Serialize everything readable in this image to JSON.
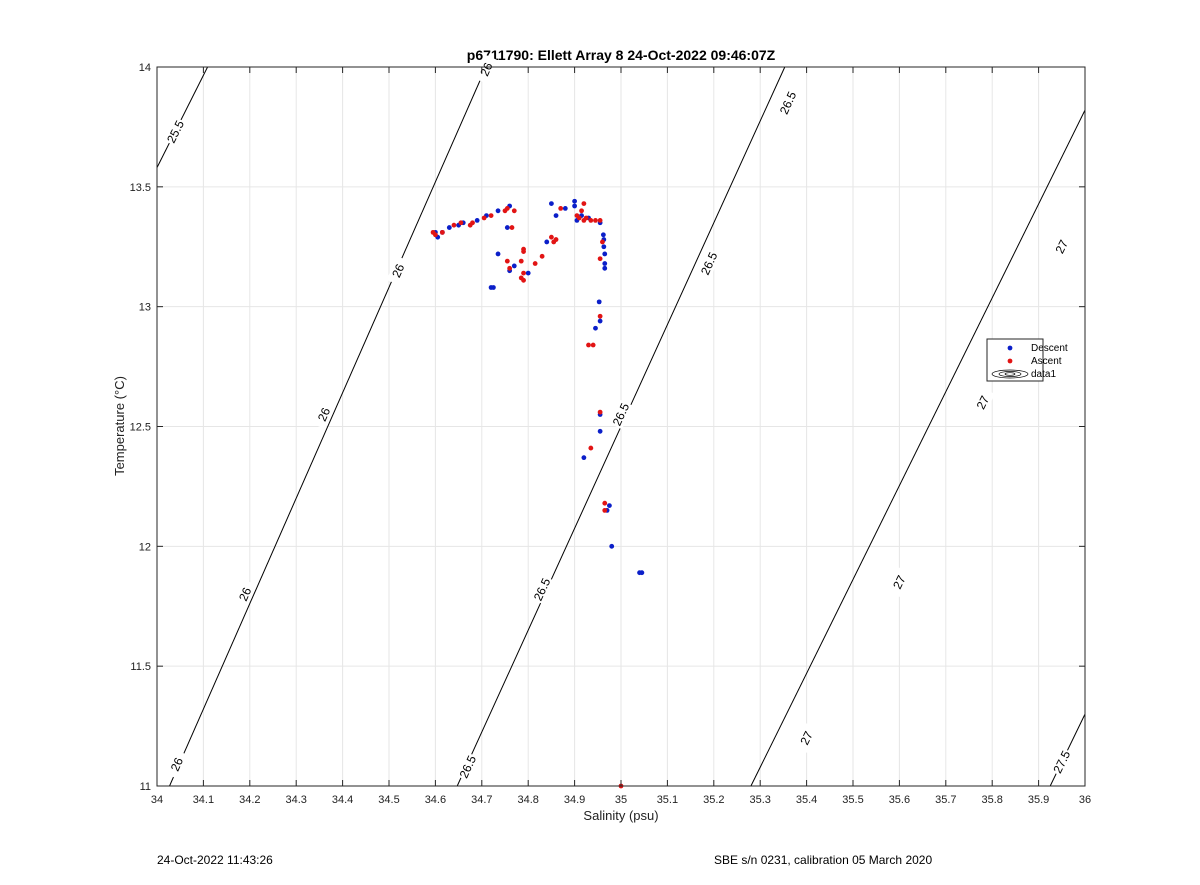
{
  "chart_data": {
    "type": "scatter",
    "title": "p6711790: Ellett Array 8 24-Oct-2022 09:46:07Z",
    "xlabel": "Salinity (psu)",
    "ylabel": "Temperature (°C)",
    "xlim": [
      34,
      36
    ],
    "ylim": [
      11,
      14
    ],
    "xticks": [
      "34",
      "34.1",
      "34.2",
      "34.3",
      "34.4",
      "34.5",
      "34.6",
      "34.7",
      "34.8",
      "34.9",
      "35",
      "35.1",
      "35.2",
      "35.3",
      "35.4",
      "35.5",
      "35.6",
      "35.7",
      "35.8",
      "35.9",
      "36"
    ],
    "yticks": [
      "11",
      "11.5",
      "12",
      "12.5",
      "13",
      "13.5",
      "14"
    ],
    "grid": true,
    "legend_position": "right",
    "contours": [
      {
        "level": "25.5",
        "points": [
          [
            34.0,
            13.58
          ],
          [
            34.109,
            14.0
          ]
        ],
        "labels": [
          [
            34.04,
            13.73
          ]
        ]
      },
      {
        "level": "26",
        "points": [
          [
            34.027,
            11.0
          ],
          [
            34.709,
            14.0
          ]
        ],
        "labels": [
          [
            34.043,
            11.09
          ],
          [
            34.19,
            11.8
          ],
          [
            34.36,
            12.55
          ],
          [
            34.52,
            13.15
          ],
          [
            34.71,
            13.99
          ]
        ]
      },
      {
        "level": "26.5",
        "points": [
          [
            34.647,
            11.0
          ],
          [
            35.353,
            14.0
          ]
        ],
        "labels": [
          [
            34.67,
            11.08
          ],
          [
            34.83,
            11.82
          ],
          [
            35.0,
            12.55
          ],
          [
            35.19,
            13.18
          ],
          [
            35.36,
            13.85
          ]
        ]
      },
      {
        "level": "27",
        "points": [
          [
            35.28,
            11.0
          ],
          [
            36.0,
            13.82
          ]
        ],
        "labels": [
          [
            35.4,
            11.2
          ],
          [
            35.6,
            11.85
          ],
          [
            35.78,
            12.6
          ],
          [
            35.95,
            13.25
          ]
        ]
      },
      {
        "level": "27.5",
        "points": [
          [
            35.925,
            11.0
          ],
          [
            36.0,
            11.3
          ]
        ],
        "labels": [
          [
            35.95,
            11.1
          ]
        ]
      }
    ],
    "series": [
      {
        "name": "Descent",
        "color": "#0b1fc9",
        "points": [
          [
            35.045,
            11.89
          ],
          [
            35.04,
            11.89
          ],
          [
            34.98,
            12.0
          ],
          [
            34.975,
            12.17
          ],
          [
            34.97,
            12.15
          ],
          [
            34.955,
            12.48
          ],
          [
            34.92,
            12.37
          ],
          [
            34.955,
            12.55
          ],
          [
            34.945,
            12.91
          ],
          [
            34.955,
            12.94
          ],
          [
            34.953,
            13.02
          ],
          [
            34.965,
            13.16
          ],
          [
            34.965,
            13.18
          ],
          [
            34.965,
            13.22
          ],
          [
            34.963,
            13.25
          ],
          [
            34.963,
            13.28
          ],
          [
            34.962,
            13.3
          ],
          [
            34.955,
            13.35
          ],
          [
            34.93,
            13.37
          ],
          [
            34.915,
            13.38
          ],
          [
            34.905,
            13.36
          ],
          [
            34.9,
            13.42
          ],
          [
            34.9,
            13.44
          ],
          [
            34.88,
            13.41
          ],
          [
            34.86,
            13.38
          ],
          [
            34.85,
            13.43
          ],
          [
            34.84,
            13.27
          ],
          [
            34.8,
            13.14
          ],
          [
            34.77,
            13.17
          ],
          [
            34.76,
            13.15
          ],
          [
            34.735,
            13.22
          ],
          [
            34.725,
            13.08
          ],
          [
            34.72,
            13.08
          ],
          [
            34.755,
            13.33
          ],
          [
            34.76,
            13.42
          ],
          [
            34.735,
            13.4
          ],
          [
            34.71,
            13.38
          ],
          [
            34.69,
            13.36
          ],
          [
            34.66,
            13.35
          ],
          [
            34.65,
            13.34
          ],
          [
            34.63,
            13.33
          ],
          [
            34.615,
            13.31
          ],
          [
            34.605,
            13.29
          ],
          [
            34.6,
            13.31
          ]
        ]
      },
      {
        "name": "Ascent",
        "color": "#e21414",
        "points": [
          [
            35.0,
            11.0
          ],
          [
            34.965,
            12.18
          ],
          [
            34.965,
            12.15
          ],
          [
            34.955,
            12.56
          ],
          [
            34.935,
            12.41
          ],
          [
            34.94,
            12.84
          ],
          [
            34.93,
            12.84
          ],
          [
            34.955,
            12.96
          ],
          [
            34.955,
            13.2
          ],
          [
            34.96,
            13.27
          ],
          [
            34.955,
            13.36
          ],
          [
            34.945,
            13.36
          ],
          [
            34.935,
            13.36
          ],
          [
            34.925,
            13.37
          ],
          [
            34.92,
            13.36
          ],
          [
            34.91,
            13.37
          ],
          [
            34.905,
            13.38
          ],
          [
            34.92,
            13.43
          ],
          [
            34.915,
            13.4
          ],
          [
            34.87,
            13.41
          ],
          [
            34.855,
            13.27
          ],
          [
            34.86,
            13.28
          ],
          [
            34.85,
            13.29
          ],
          [
            34.83,
            13.21
          ],
          [
            34.815,
            13.18
          ],
          [
            34.79,
            13.24
          ],
          [
            34.79,
            13.23
          ],
          [
            34.785,
            13.19
          ],
          [
            34.79,
            13.14
          ],
          [
            34.785,
            13.12
          ],
          [
            34.79,
            13.11
          ],
          [
            34.76,
            13.16
          ],
          [
            34.755,
            13.19
          ],
          [
            34.765,
            13.33
          ],
          [
            34.77,
            13.4
          ],
          [
            34.755,
            13.41
          ],
          [
            34.75,
            13.4
          ],
          [
            34.72,
            13.38
          ],
          [
            34.705,
            13.37
          ],
          [
            34.68,
            13.35
          ],
          [
            34.675,
            13.34
          ],
          [
            34.655,
            13.35
          ],
          [
            34.64,
            13.34
          ],
          [
            34.615,
            13.31
          ],
          [
            34.6,
            13.3
          ],
          [
            34.595,
            13.31
          ]
        ]
      }
    ],
    "legend_entries": [
      "Descent",
      "Ascent",
      "data1"
    ]
  },
  "footer": {
    "left": "24-Oct-2022 11:43:26",
    "right": "SBE s/n 0231, calibration 05 March 2020"
  }
}
